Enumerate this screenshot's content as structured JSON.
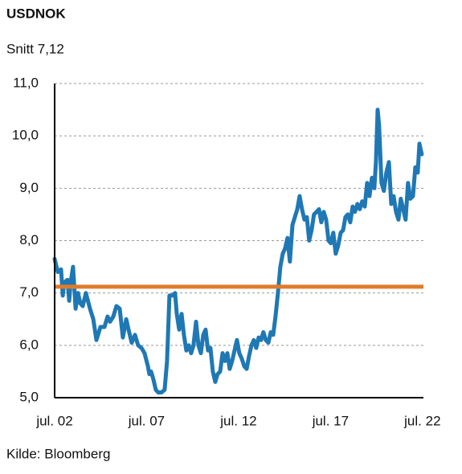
{
  "chart_data": {
    "type": "line",
    "title": "USDNOK",
    "average": {
      "value": 7.12,
      "label": "Snitt 7,12"
    },
    "average_color": "#e07b2a",
    "source": "Kilde: Bloomberg",
    "x": [
      2002.5,
      2002.67,
      2002.85,
      2002.94,
      2003.02,
      2003.2,
      2003.29,
      2003.37,
      2003.5,
      2003.64,
      2003.77,
      2003.9,
      2004.03,
      2004.2,
      2004.42,
      2004.6,
      2004.77,
      2004.99,
      2005.21,
      2005.38,
      2005.51,
      2005.69,
      2005.86,
      2006.04,
      2006.21,
      2006.39,
      2006.52,
      2006.69,
      2006.87,
      2007.04,
      2007.22,
      2007.39,
      2007.57,
      2007.65,
      2007.74,
      2007.87,
      2008.0,
      2008.13,
      2008.31,
      2008.48,
      2008.61,
      2008.74,
      2008.92,
      2009.05,
      2009.14,
      2009.27,
      2009.4,
      2009.53,
      2009.66,
      2009.79,
      2009.92,
      2010.05,
      2010.19,
      2010.32,
      2010.45,
      2010.58,
      2010.71,
      2010.84,
      2010.97,
      2011.1,
      2011.23,
      2011.36,
      2011.5,
      2011.63,
      2011.76,
      2011.89,
      2012.02,
      2012.15,
      2012.28,
      2012.41,
      2012.54,
      2012.67,
      2012.81,
      2012.94,
      2013.07,
      2013.2,
      2013.33,
      2013.46,
      2013.59,
      2013.72,
      2013.85,
      2013.98,
      2014.12,
      2014.25,
      2014.38,
      2014.51,
      2014.64,
      2014.77,
      2014.9,
      2015.03,
      2015.16,
      2015.29,
      2015.43,
      2015.56,
      2015.69,
      2015.82,
      2015.95,
      2016.08,
      2016.21,
      2016.34,
      2016.47,
      2016.6,
      2016.74,
      2016.87,
      2017.0,
      2017.13,
      2017.26,
      2017.39,
      2017.52,
      2017.65,
      2017.78,
      2017.91,
      2018.05,
      2018.18,
      2018.31,
      2018.44,
      2018.57,
      2018.7,
      2018.83,
      2018.96,
      2019.09,
      2019.22,
      2019.36,
      2019.49,
      2019.62,
      2019.75,
      2019.88,
      2019.97,
      2020.06,
      2020.14,
      2020.27,
      2020.4,
      2020.53,
      2020.67,
      2020.8,
      2020.93,
      2021.06,
      2021.19,
      2021.32,
      2021.45,
      2021.58,
      2021.71,
      2021.84,
      2021.98,
      2022.11,
      2022.24,
      2022.33,
      2022.46
    ],
    "series": [
      {
        "name": "USDNOK",
        "color": "#1f78b4",
        "values": [
          7.65,
          7.4,
          7.45,
          6.95,
          7.2,
          7.25,
          6.85,
          7.2,
          7.5,
          6.7,
          7.0,
          6.8,
          6.75,
          7.0,
          6.7,
          6.5,
          6.1,
          6.35,
          6.35,
          6.55,
          6.45,
          6.55,
          6.75,
          6.7,
          6.15,
          6.5,
          6.3,
          6.05,
          6.2,
          6.0,
          5.95,
          5.85,
          5.6,
          5.45,
          5.5,
          5.35,
          5.15,
          5.1,
          5.1,
          5.15,
          5.7,
          6.95,
          6.95,
          7.0,
          6.6,
          6.3,
          6.6,
          6.2,
          5.9,
          6.0,
          5.85,
          6.0,
          6.45,
          6.0,
          5.85,
          6.2,
          6.3,
          5.9,
          5.95,
          5.5,
          5.3,
          5.45,
          5.5,
          5.85,
          5.7,
          5.85,
          5.55,
          5.7,
          5.9,
          6.1,
          5.85,
          5.75,
          5.6,
          5.55,
          5.8,
          6.0,
          6.1,
          5.95,
          6.15,
          6.1,
          6.25,
          6.1,
          6.05,
          6.25,
          6.2,
          6.55,
          7.0,
          7.5,
          7.75,
          7.85,
          8.05,
          7.6,
          8.3,
          8.45,
          8.6,
          8.85,
          8.6,
          8.4,
          8.45,
          8.0,
          8.2,
          8.5,
          8.55,
          8.6,
          8.35,
          8.55,
          8.4,
          8.0,
          7.95,
          8.15,
          7.75,
          7.9,
          8.15,
          8.2,
          8.45,
          8.5,
          8.35,
          8.65,
          8.55,
          8.7,
          8.6,
          8.75,
          8.65,
          9.1,
          8.85,
          9.2,
          9.0,
          9.5,
          10.5,
          10.2,
          9.1,
          8.95,
          9.3,
          9.5,
          8.7,
          8.85,
          8.55,
          8.4,
          8.8,
          8.6,
          8.4,
          9.1,
          8.8,
          8.85,
          9.4,
          9.3,
          9.85,
          9.65
        ]
      }
    ],
    "xlim": [
      2002.5,
      2022.55
    ],
    "xticks": [
      {
        "value": 2002.5,
        "label": "jul. 02"
      },
      {
        "value": 2007.5,
        "label": "jul. 07"
      },
      {
        "value": 2012.5,
        "label": "jul. 12"
      },
      {
        "value": 2017.5,
        "label": "jul. 17"
      },
      {
        "value": 2022.5,
        "label": "jul. 22"
      }
    ],
    "ylim": [
      5,
      11
    ],
    "yticks": [
      {
        "value": 5,
        "label": "5,0"
      },
      {
        "value": 6,
        "label": "6,0"
      },
      {
        "value": 7,
        "label": "7,0"
      },
      {
        "value": 8,
        "label": "8,0"
      },
      {
        "value": 9,
        "label": "9,0"
      },
      {
        "value": 10,
        "label": "10,0"
      },
      {
        "value": 11,
        "label": "11,0"
      }
    ],
    "grid": true
  }
}
